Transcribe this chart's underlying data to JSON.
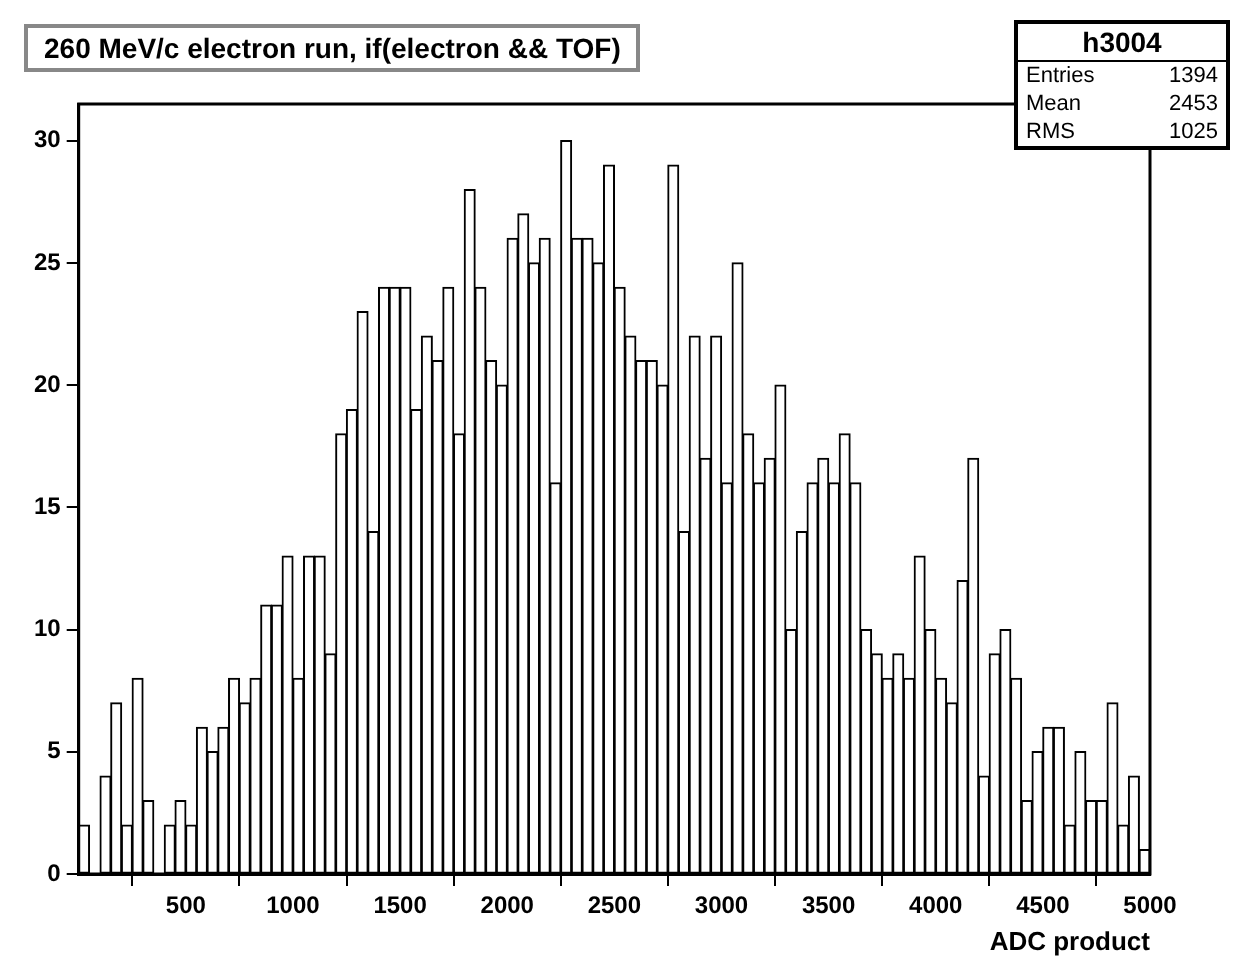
{
  "chart_data": {
    "type": "histogram",
    "title": "260 MeV/c electron run, if(electron && TOF)",
    "xlabel": "ADC product",
    "bins": [
      0,
      50,
      100,
      150,
      200,
      250,
      300,
      350,
      400,
      450,
      500,
      550,
      600,
      650,
      700,
      750,
      800,
      850,
      900,
      950,
      1000,
      1050,
      1100,
      1150,
      1200,
      1250,
      1300,
      1350,
      1400,
      1450,
      1500,
      1550,
      1600,
      1650,
      1700,
      1750,
      1800,
      1850,
      1900,
      1950,
      2000,
      2050,
      2100,
      2150,
      2200,
      2250,
      2300,
      2350,
      2400,
      2450,
      2500,
      2550,
      2600,
      2650,
      2700,
      2750,
      2800,
      2850,
      2900,
      2950,
      3000,
      3050,
      3100,
      3150,
      3200,
      3250,
      3300,
      3350,
      3400,
      3450,
      3500,
      3550,
      3600,
      3650,
      3700,
      3750,
      3800,
      3850,
      3900,
      3950,
      4000,
      4050,
      4100,
      4150,
      4200,
      4250,
      4300,
      4350,
      4400,
      4450,
      4500,
      4550,
      4600,
      4650,
      4700,
      4750,
      4800,
      4850,
      4900,
      4950,
      5000
    ],
    "values": [
      2,
      0,
      4,
      7,
      2,
      8,
      3,
      0,
      2,
      3,
      2,
      6,
      5,
      6,
      8,
      7,
      8,
      11,
      11,
      13,
      8,
      13,
      13,
      9,
      18,
      19,
      23,
      14,
      24,
      24,
      24,
      19,
      22,
      21,
      24,
      18,
      28,
      24,
      21,
      20,
      26,
      27,
      25,
      26,
      16,
      30,
      26,
      26,
      25,
      29,
      24,
      22,
      21,
      21,
      20,
      29,
      14,
      22,
      17,
      22,
      16,
      25,
      18,
      16,
      17,
      20,
      10,
      14,
      16,
      17,
      16,
      18,
      16,
      10,
      9,
      8,
      9,
      8,
      13,
      10,
      8,
      7,
      12,
      17,
      4,
      9,
      10,
      8,
      3,
      5,
      6,
      6,
      2,
      5,
      3,
      3,
      7,
      2,
      4,
      1
    ],
    "color": "#ffffff",
    "xlim": [
      0,
      5000
    ],
    "xticks": [
      500,
      1000,
      1500,
      2000,
      2500,
      3000,
      3500,
      4000,
      4500,
      5000
    ],
    "ylim": [
      0,
      31.5
    ],
    "yticks": [
      0,
      5,
      10,
      15,
      20,
      25,
      30
    ],
    "grid": false,
    "legend": false,
    "annotations": [
      "h3004",
      "Entries 1394",
      "Mean 2453",
      "RMS 1025"
    ]
  }
}
